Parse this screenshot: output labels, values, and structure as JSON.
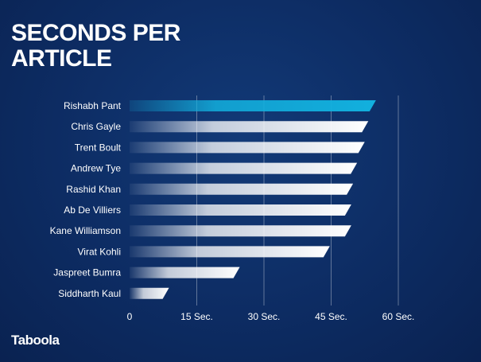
{
  "header": {
    "title_line1": "SECONDS PER",
    "title_line2": "ARTICLE"
  },
  "brand": {
    "logo_text": "Taboola"
  },
  "colors": {
    "highlight": "#12b0de",
    "bar": "#ffffff",
    "background": "#0d2c63",
    "text": "#ffffff"
  },
  "chart_data": {
    "type": "bar",
    "orientation": "horizontal",
    "title": "SECONDS PER ARTICLE",
    "categories": [
      "Rishabh Pant",
      "Chris Gayle",
      "Trent Boult",
      "Andrew Tye",
      "Rashid Khan",
      "Ab De Villiers",
      "Kane Williamson",
      "Virat Kohli",
      "Jaspreet Bumra",
      "Siddharth Kaul"
    ],
    "values": [
      55,
      53.3,
      52.5,
      50.8,
      49.9,
      49.5,
      49.5,
      44.7,
      24.6,
      8.8
    ],
    "highlight_index": 0,
    "xlim": [
      0,
      60
    ],
    "xticks": [
      0,
      15,
      30,
      45,
      60
    ],
    "xtick_labels": [
      "0",
      "15 Sec.",
      "30 Sec.",
      "45 Sec.",
      "60 Sec."
    ],
    "grid": true
  }
}
